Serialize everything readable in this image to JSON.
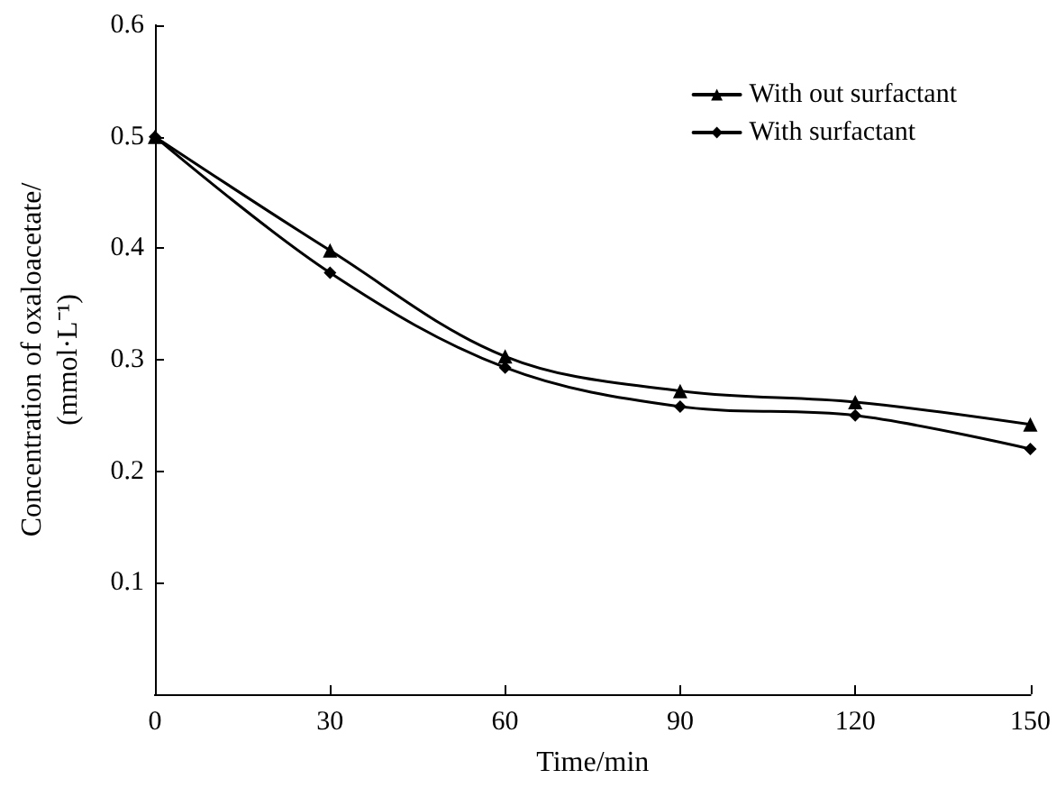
{
  "chart_data": {
    "type": "line",
    "xlabel": "Time/min",
    "ylabel": "Concentration of oxaloacetate/\n(mmol·L⁻¹)",
    "x": [
      0,
      30,
      60,
      90,
      120,
      150
    ],
    "series": [
      {
        "name": "With out surfactant",
        "color": "#000000",
        "marker": "triangle",
        "values": [
          0.5,
          0.398,
          0.303,
          0.272,
          0.262,
          0.242
        ]
      },
      {
        "name": "With surfactant",
        "color": "#000000",
        "marker": "diamond",
        "values": [
          0.5,
          0.378,
          0.293,
          0.258,
          0.25,
          0.22
        ]
      }
    ],
    "xlim": [
      0,
      150
    ],
    "xticks": [
      0,
      30,
      60,
      90,
      120,
      150
    ],
    "ylim": [
      0,
      0.6
    ],
    "yticks": [
      {
        "value": 0,
        "label": null
      },
      0.1,
      0.2,
      0.3,
      0.4,
      0.5,
      0.6
    ],
    "grid": false,
    "legend": "top right",
    "line_style": "solid"
  }
}
